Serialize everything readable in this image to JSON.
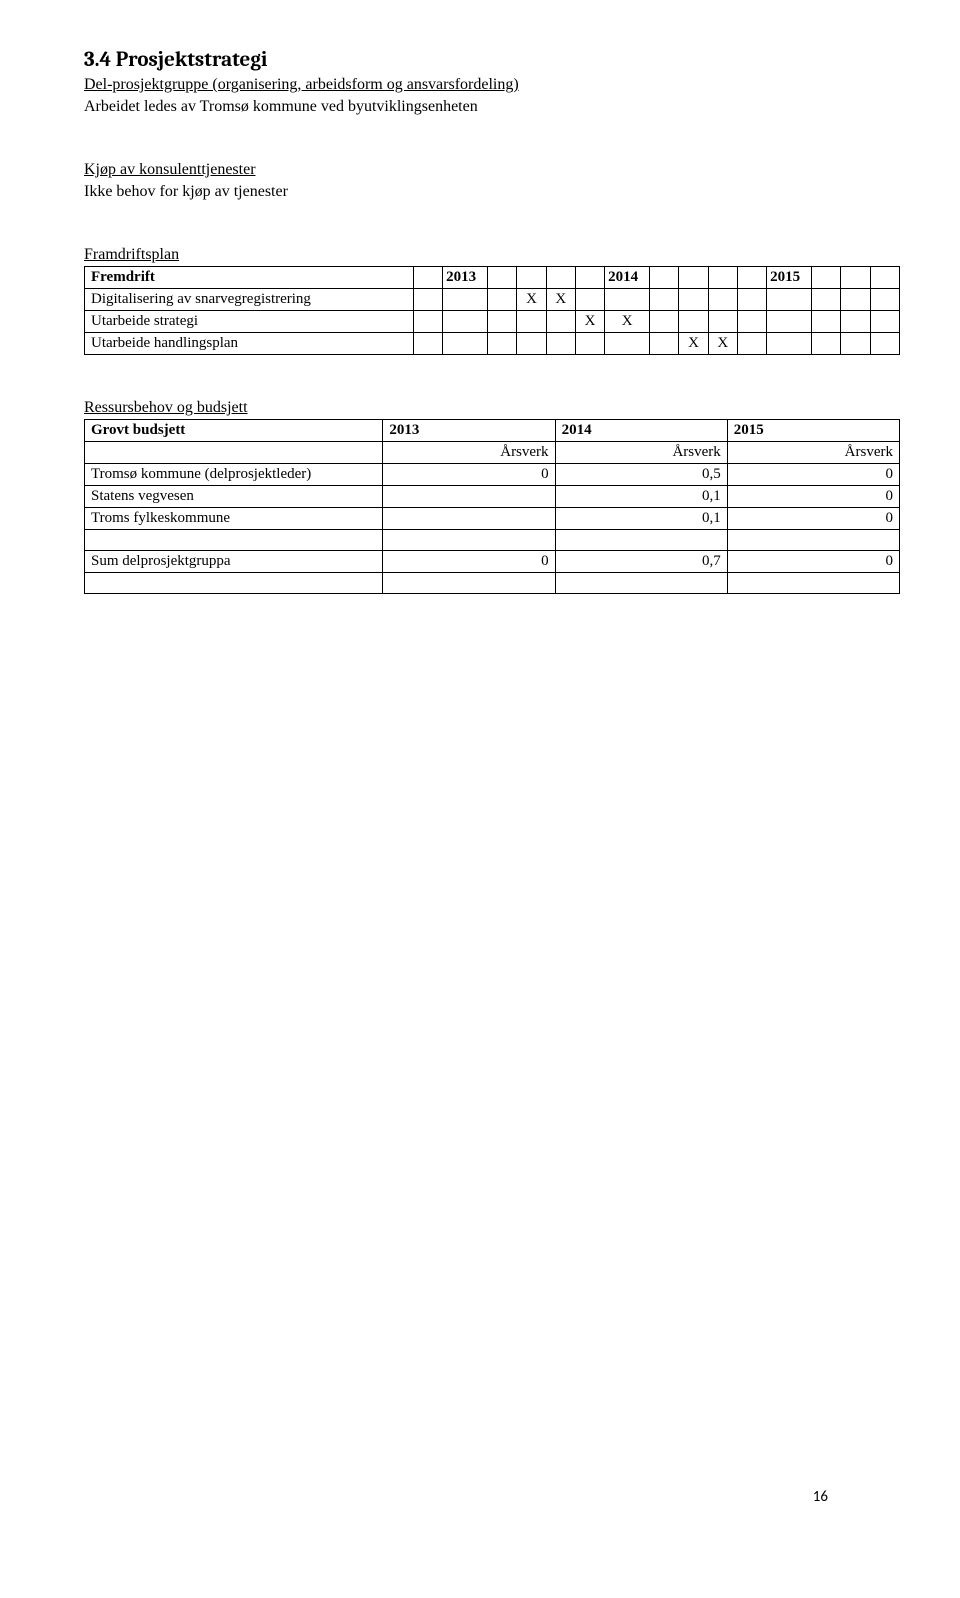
{
  "heading": "3.4 Prosjektstrategi",
  "para1_line1_label": "Del-prosjektgruppe (organisering, arbeidsform og ansvarsfordeling)",
  "para1_line2": "Arbeidet ledes av Tromsø kommune ved byutviklingsenheten",
  "para2_label": "Kjøp av konsulenttjenester",
  "para2_line2": "Ikke behov for kjøp av tjenester",
  "para3_label": "Framdriftsplan",
  "tbl1": {
    "header": {
      "c0": "Fremdrift",
      "c2": "2013",
      "c7": "2014",
      "c12": "2015"
    },
    "rows": [
      {
        "label": "Digitalisering av snarvegregistrering",
        "marks": [
          false,
          false,
          false,
          true,
          true,
          false,
          false,
          false,
          false,
          false,
          false,
          false,
          false,
          false,
          false
        ]
      },
      {
        "label": "Utarbeide strategi",
        "marks": [
          false,
          false,
          false,
          false,
          false,
          true,
          true,
          false,
          false,
          false,
          false,
          false,
          false,
          false,
          false
        ]
      },
      {
        "label": "Utarbeide handlingsplan",
        "marks": [
          false,
          false,
          false,
          false,
          false,
          false,
          false,
          false,
          true,
          true,
          false,
          false,
          false,
          false,
          false
        ]
      }
    ],
    "mark_glyph": "X"
  },
  "para4_label": "Ressursbehov og budsjett",
  "tbl2": {
    "header": {
      "c0": "Grovt budsjett",
      "c1": "2013",
      "c2": "2014",
      "c3": "2015"
    },
    "sub": {
      "c1": "Årsverk",
      "c2": "Årsverk",
      "c3": "Årsverk"
    },
    "rows": [
      {
        "label": "Tromsø kommune (delprosjektleder)",
        "v1": "0",
        "v2": "0,5",
        "v3": "0"
      },
      {
        "label": "Statens vegvesen",
        "v1": "",
        "v2": "0,1",
        "v3": "0"
      },
      {
        "label": "Troms fylkeskommune",
        "v1": "",
        "v2": "0,1",
        "v3": "0"
      },
      {
        "label": "",
        "v1": "",
        "v2": "",
        "v3": ""
      },
      {
        "label": "Sum delprosjektgruppa",
        "v1": "0",
        "v2": "0,7",
        "v3": "0"
      },
      {
        "label": "",
        "v1": "",
        "v2": "",
        "v3": ""
      }
    ]
  },
  "page_number": "16"
}
